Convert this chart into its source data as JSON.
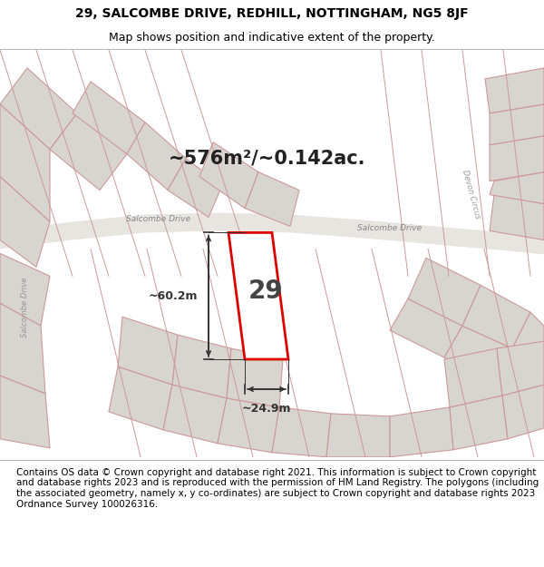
{
  "title_line1": "29, SALCOMBE DRIVE, REDHILL, NOTTINGHAM, NG5 8JF",
  "title_line2": "Map shows position and indicative extent of the property.",
  "footer_text": "Contains OS data © Crown copyright and database right 2021. This information is subject to Crown copyright and database rights 2023 and is reproduced with the permission of HM Land Registry. The polygons (including the associated geometry, namely x, y co-ordinates) are subject to Crown copyright and database rights 2023 Ordnance Survey 100026316.",
  "area_label": "~576m²/~0.142ac.",
  "plot_number": "29",
  "dim_width": "~24.9m",
  "dim_height": "~60.2m",
  "road_label_salcombe_left": "Salcombe Drive",
  "road_label_salcombe_right": "Salcombe Drive",
  "road_label_devon": "Devon Circus",
  "road_label_salcombe_vert": "Salcombe Drive",
  "map_bg": "#ffffff",
  "header_bg": "#ffffff",
  "footer_bg": "#ffffff",
  "plot_color": "#dd0000",
  "plot_fill": "#ffffff",
  "block_fill": "#d8d4d0",
  "block_edge": "#cc9999",
  "road_fill": "#e8e4e0",
  "title_fontsize": 10,
  "subtitle_fontsize": 9,
  "footer_fontsize": 7.5,
  "area_fontsize": 15,
  "number_fontsize": 20,
  "dim_fontsize": 9
}
